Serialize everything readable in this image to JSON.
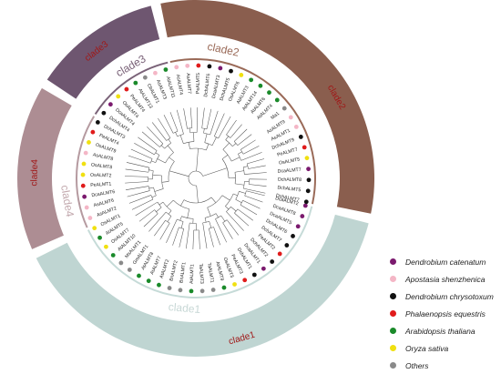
{
  "clades": [
    {
      "id": "clade1",
      "label": "clade1",
      "outer_color": "#bfd5d2",
      "inner_color": "#c6dbd8",
      "text_color": "#c8d8d6"
    },
    {
      "id": "clade2",
      "label": "clade2",
      "outer_color": "#8a5e4e",
      "inner_color": "#9a6a58",
      "text_color": "#9a6a58"
    },
    {
      "id": "clade3",
      "label": "clade3",
      "outer_color": "#6e5670",
      "inner_color": "#7a6278",
      "text_color": "#7a6278"
    },
    {
      "id": "clade4",
      "label": "clade4",
      "outer_color": "#ad8d93",
      "inner_color": "#b59aa0",
      "text_color": "#c2a8ad"
    }
  ],
  "species": [
    {
      "key": "dcat",
      "name": "Dendrobium catenatum",
      "color": "#7b1a6e"
    },
    {
      "key": "ashe",
      "name": "Apostasia shenzhenica",
      "color": "#f4b6c6"
    },
    {
      "key": "dchr",
      "name": "Dendrobium chrysotoxum",
      "color": "#111111"
    },
    {
      "key": "pequ",
      "name": "Phalaenopsis equestris",
      "color": "#e01b1b"
    },
    {
      "key": "atha",
      "name": "Arabidopsis thaliana",
      "color": "#1a8a2a"
    },
    {
      "key": "osat",
      "name": "Oryza sativa",
      "color": "#f0e010"
    },
    {
      "key": "oth",
      "name": "Others",
      "color": "#8a8a8a"
    }
  ],
  "leaves": [
    {
      "label": "DcaALMT2",
      "sp": "dcat"
    },
    {
      "label": "DcaALMT8",
      "sp": "dcat"
    },
    {
      "label": "DcaALMT5",
      "sp": "dcat"
    },
    {
      "label": "DchALMT6",
      "sp": "dchr"
    },
    {
      "label": "DchALMT7",
      "sp": "dchr"
    },
    {
      "label": "PeALMT2",
      "sp": "pequ"
    },
    {
      "label": "DchALMT2",
      "sp": "dchr"
    },
    {
      "label": "DcaALMT1",
      "sp": "dcat"
    },
    {
      "label": "DchALMT1",
      "sp": "dchr"
    },
    {
      "label": "PeALMT3",
      "sp": "pequ"
    },
    {
      "label": "OsALMT3",
      "sp": "osat"
    },
    {
      "label": "AtALMT9",
      "sp": "atha"
    },
    {
      "label": "TaALMT1",
      "sp": "oth"
    },
    {
      "label": "TaALMT3",
      "sp": "oth"
    },
    {
      "label": "AtALMT1",
      "sp": "atha"
    },
    {
      "label": "BnALMT1",
      "sp": "oth"
    },
    {
      "label": "BnALMT2",
      "sp": "oth"
    },
    {
      "label": "AtALMT2",
      "sp": "atha"
    },
    {
      "label": "AtALMT7",
      "sp": "atha"
    },
    {
      "label": "AtALMT8",
      "sp": "atha"
    },
    {
      "label": "GmALMT1",
      "sp": "oth"
    },
    {
      "label": "MsALMT1",
      "sp": "oth"
    },
    {
      "label": "AtALMT10",
      "sp": "atha"
    },
    {
      "label": "OsALMT7",
      "sp": "osat"
    },
    {
      "label": "AtALMT5",
      "sp": "atha"
    },
    {
      "label": "OsALMT1",
      "sp": "osat"
    },
    {
      "label": "AsALMT2",
      "sp": "ashe"
    },
    {
      "label": "AsALMT6",
      "sp": "ashe"
    },
    {
      "label": "DcaALMT6",
      "sp": "dcat"
    },
    {
      "label": "PeALMT1",
      "sp": "pequ"
    },
    {
      "label": "OsALMT2",
      "sp": "osat"
    },
    {
      "label": "OsALMT8",
      "sp": "osat"
    },
    {
      "label": "AsALMT8",
      "sp": "ashe"
    },
    {
      "label": "OsALMT9",
      "sp": "osat"
    },
    {
      "label": "PeALMT4",
      "sp": "pequ"
    },
    {
      "label": "DchALMT3",
      "sp": "dchr"
    },
    {
      "label": "DchALMT4",
      "sp": "dchr"
    },
    {
      "label": "DcaALMT4",
      "sp": "dcat"
    },
    {
      "label": "OsALMT4",
      "sp": "osat"
    },
    {
      "label": "PeALMT4",
      "sp": "pequ"
    },
    {
      "label": "AtALMT13",
      "sp": "atha"
    },
    {
      "label": "CbALMT1",
      "sp": "oth"
    },
    {
      "label": "AsALMT3",
      "sp": "ashe"
    },
    {
      "label": "AtALMT11",
      "sp": "atha"
    },
    {
      "label": "AsALMT4",
      "sp": "ashe"
    },
    {
      "label": "AsALMT7",
      "sp": "ashe"
    },
    {
      "label": "PeALMT5",
      "sp": "pequ"
    },
    {
      "label": "DchALMT6",
      "sp": "dchr"
    },
    {
      "label": "DcaALMT3",
      "sp": "dcat"
    },
    {
      "label": "DchALMT5",
      "sp": "dchr"
    },
    {
      "label": "OsALMT6",
      "sp": "osat"
    },
    {
      "label": "AtALMT3",
      "sp": "atha"
    },
    {
      "label": "AtALMT14",
      "sp": "atha"
    },
    {
      "label": "AtALMT6",
      "sp": "atha"
    },
    {
      "label": "AtALMT4",
      "sp": "atha"
    },
    {
      "label": "Ma1",
      "sp": "oth"
    },
    {
      "label": "AsALMT9",
      "sp": "ashe"
    },
    {
      "label": "AsALMT1",
      "sp": "ashe"
    },
    {
      "label": "DchALMT9",
      "sp": "dchr"
    },
    {
      "label": "PeALMT7",
      "sp": "pequ"
    },
    {
      "label": "OsALMT5",
      "sp": "osat"
    },
    {
      "label": "DcaALMT7",
      "sp": "dcat"
    },
    {
      "label": "DchALMT8",
      "sp": "dchr"
    },
    {
      "label": "DchALMT5",
      "sp": "dchr"
    },
    {
      "label": "DchALMT7",
      "sp": "dchr"
    }
  ]
}
